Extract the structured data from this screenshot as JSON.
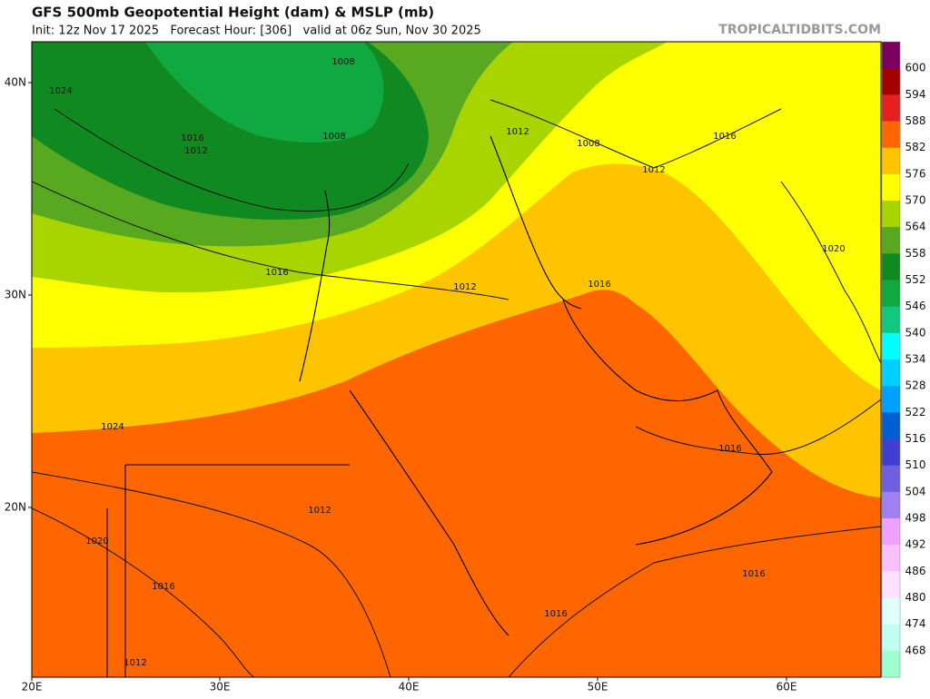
{
  "header": {
    "title": "GFS 500mb Geopotential Height (dam) & MSLP (mb)",
    "subtitle": "Init: 12z Nov 17 2025   Forecast Hour: [306]   valid at 06z Sun, Nov 30 2025",
    "watermark": "TROPICALTIDBITS.COM"
  },
  "axes": {
    "lon_labels": [
      "20E",
      "30E",
      "40E",
      "50E",
      "60E"
    ],
    "lat_labels": [
      "40N",
      "30N",
      "20N"
    ]
  },
  "colorbar": {
    "labels": [
      600,
      594,
      588,
      582,
      576,
      570,
      564,
      558,
      552,
      546,
      540,
      534,
      528,
      522,
      516,
      510,
      504,
      498,
      492,
      486,
      480,
      474,
      468
    ],
    "colors": [
      "#7a0060",
      "#a50000",
      "#e52020",
      "#ff6600",
      "#ffc400",
      "#ffff00",
      "#a8d400",
      "#58a820",
      "#108a20",
      "#10a840",
      "#10c880",
      "#00ffff",
      "#00d0ff",
      "#00a0ff",
      "#0060d0",
      "#4040d0",
      "#7060e0",
      "#a080f0",
      "#f0a0ff",
      "#f8c0f8",
      "#ffe0ff",
      "#e0fff8",
      "#c0fff0",
      "#a0ffd0"
    ]
  },
  "isobar_labels": [
    1008,
    1024,
    1016,
    1012,
    1008,
    1012,
    1008,
    1016,
    1012,
    1016,
    1012,
    1016,
    1020,
    1024,
    1016,
    1012,
    1020,
    1016,
    1016,
    1016,
    1012
  ]
}
